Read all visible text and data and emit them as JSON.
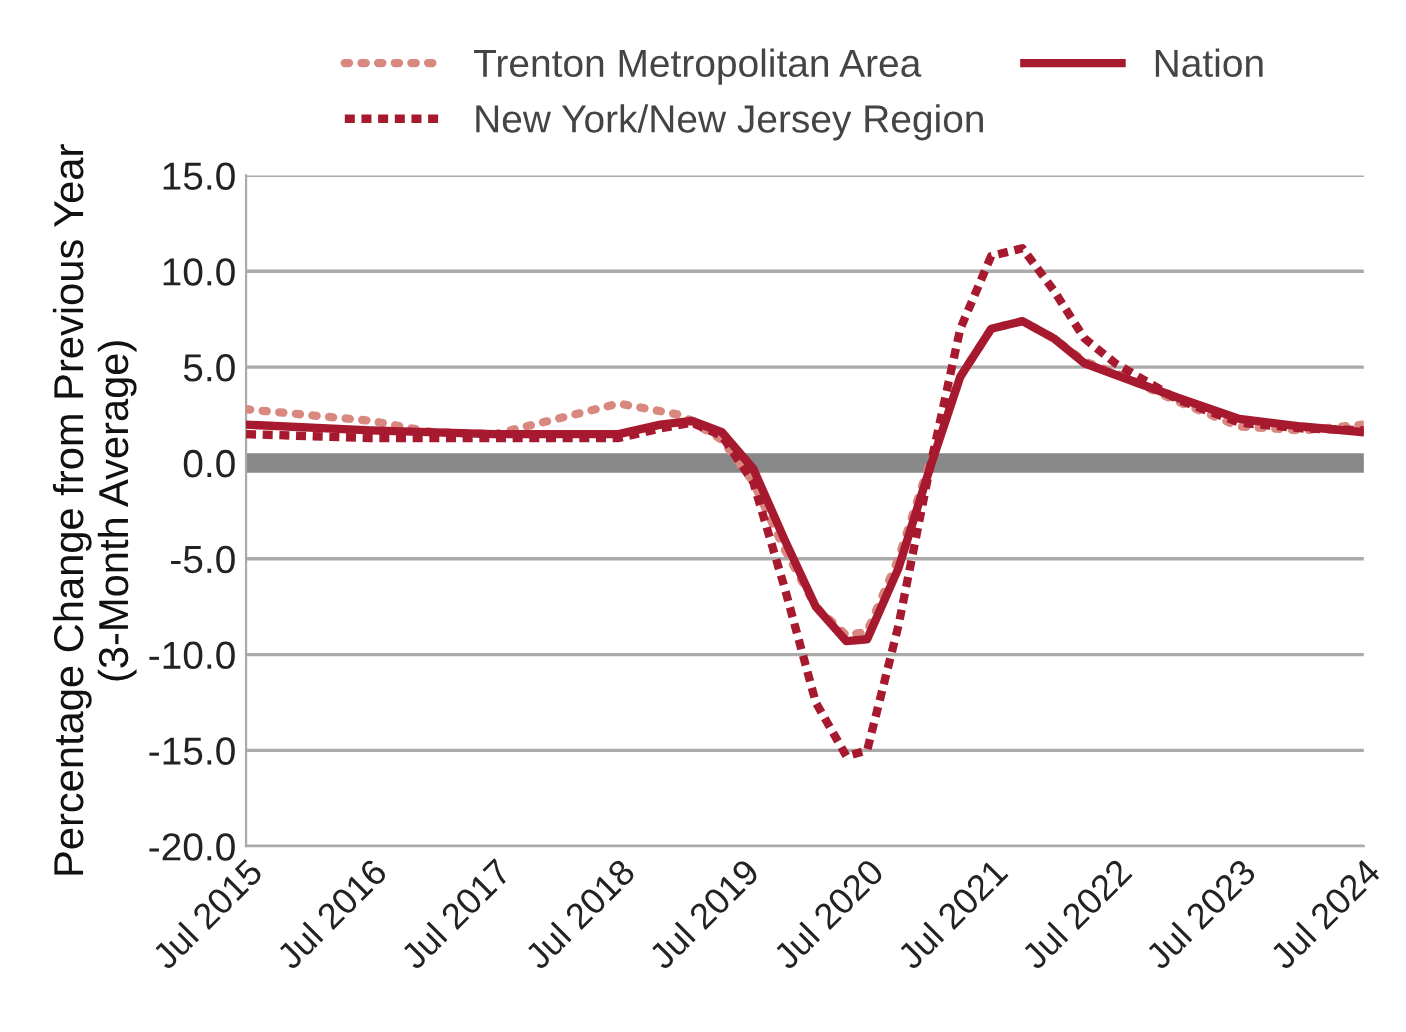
{
  "chart_data": {
    "type": "line",
    "ylabel": "Percentage Change from Previous Year\n(3-Month Average)",
    "series": [
      {
        "name": "Trenton Metropolitan Area",
        "color": "#d98880",
        "line_style": "dotted",
        "x": [
          "2015-07",
          "2016-07",
          "2017-01",
          "2017-07",
          "2018-01",
          "2018-07",
          "2019-01",
          "2019-05",
          "2019-08",
          "2019-11",
          "2020-02",
          "2020-05",
          "2020-07",
          "2020-10",
          "2021-01",
          "2021-04",
          "2021-07",
          "2021-10",
          "2022-01",
          "2022-04",
          "2022-07",
          "2023-01",
          "2023-07",
          "2024-01",
          "2024-07"
        ],
        "values": [
          2.8,
          2.2,
          1.6,
          1.5,
          2.3,
          3.1,
          2.5,
          1.2,
          -1.0,
          -4.5,
          -7.5,
          -9.0,
          -8.8,
          -5.0,
          0.0,
          4.5,
          7.0,
          7.4,
          6.5,
          5.3,
          4.7,
          3.2,
          1.9,
          1.7,
          2.0
        ]
      },
      {
        "name": "New York/New Jersey Region",
        "color": "#a6192e",
        "line_style": "dashed",
        "x": [
          "2015-07",
          "2016-07",
          "2017-07",
          "2018-07",
          "2018-11",
          "2019-02",
          "2019-05",
          "2019-08",
          "2019-11",
          "2020-02",
          "2020-05",
          "2020-07",
          "2020-10",
          "2021-01",
          "2021-04",
          "2021-07",
          "2021-10",
          "2022-01",
          "2022-04",
          "2022-07",
          "2023-01",
          "2023-07",
          "2024-01",
          "2024-07"
        ],
        "values": [
          1.5,
          1.3,
          1.3,
          1.3,
          1.8,
          2.1,
          1.4,
          -1.0,
          -6.5,
          -12.5,
          -15.3,
          -15.0,
          -8.5,
          -0.3,
          7.0,
          10.8,
          11.2,
          9.0,
          6.5,
          5.2,
          3.3,
          2.1,
          1.8,
          1.7
        ]
      },
      {
        "name": "Nation",
        "color": "#a6192e",
        "line_style": "solid",
        "x": [
          "2015-07",
          "2016-07",
          "2017-07",
          "2018-07",
          "2018-11",
          "2019-02",
          "2019-05",
          "2019-08",
          "2019-11",
          "2020-02",
          "2020-05",
          "2020-07",
          "2020-10",
          "2021-01",
          "2021-04",
          "2021-07",
          "2021-10",
          "2022-01",
          "2022-04",
          "2022-07",
          "2023-01",
          "2023-07",
          "2024-01",
          "2024-07"
        ],
        "values": [
          2.0,
          1.7,
          1.5,
          1.5,
          2.0,
          2.2,
          1.6,
          -0.3,
          -4.0,
          -7.5,
          -9.3,
          -9.2,
          -5.5,
          -0.3,
          4.5,
          7.0,
          7.4,
          6.5,
          5.2,
          4.6,
          3.4,
          2.3,
          1.9,
          1.6
        ]
      }
    ],
    "xlim": [
      "2015-07",
      "2024-07"
    ],
    "xticks": [
      {
        "value": "2015-07",
        "label": "Jul 2015"
      },
      {
        "value": "2016-07",
        "label": "Jul 2016"
      },
      {
        "value": "2017-07",
        "label": "Jul 2017"
      },
      {
        "value": "2018-07",
        "label": "Jul 2018"
      },
      {
        "value": "2019-07",
        "label": "Jul 2019"
      },
      {
        "value": "2020-07",
        "label": "Jul 2020"
      },
      {
        "value": "2021-07",
        "label": "Jul 2021"
      },
      {
        "value": "2022-07",
        "label": "Jul 2022"
      },
      {
        "value": "2023-07",
        "label": "Jul 2023"
      },
      {
        "value": "2024-07",
        "label": "Jul 2024"
      }
    ],
    "ylim": [
      -20,
      15
    ],
    "yticks": [
      {
        "value": -20,
        "label": "-20.0"
      },
      {
        "value": -15,
        "label": "-15.0"
      },
      {
        "value": -10,
        "label": "-10.0"
      },
      {
        "value": -5,
        "label": "-5.0"
      },
      {
        "value": 0,
        "label": "0.0"
      },
      {
        "value": 5,
        "label": "5.0"
      },
      {
        "value": 10,
        "label": "10.0"
      },
      {
        "value": 15,
        "label": "15.0"
      }
    ],
    "ref_lines": [
      {
        "axis": "y",
        "value": 0,
        "color": "#888888"
      }
    ],
    "grid": "y",
    "legend": "top",
    "marker": "none"
  }
}
